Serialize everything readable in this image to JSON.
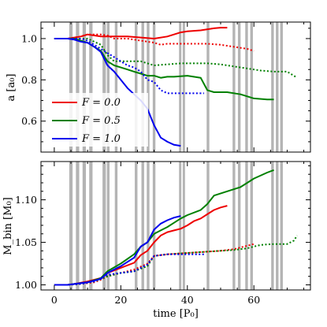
{
  "chart_data": [
    {
      "type": "line",
      "ylabel": "a [a₀]",
      "xlim": [
        -4,
        77
      ],
      "ylim": [
        0.45,
        1.08
      ],
      "yticks": [
        0.6,
        0.8,
        1.0
      ],
      "ytick_labels": [
        "0.6",
        "0.8",
        "1.0"
      ],
      "xticks": [
        0,
        20,
        40,
        60
      ],
      "grid": false,
      "legend_position": "bottom-left",
      "legend": [
        {
          "label": "F = 0.0",
          "color": "#ee0000"
        },
        {
          "label": "F = 0.5",
          "color": "#008000"
        },
        {
          "label": "F = 1.0",
          "color": "#0000ee"
        }
      ],
      "shaded_intervals": [
        [
          4.5,
          5.5
        ],
        [
          6.5,
          7.5
        ],
        [
          8.5,
          9.5
        ],
        [
          10.5,
          11.5
        ],
        [
          14.5,
          15.5
        ],
        [
          15.8,
          16.6
        ],
        [
          18.2,
          19
        ],
        [
          24.2,
          25
        ],
        [
          26.2,
          27
        ],
        [
          27.8,
          28.6
        ],
        [
          29.6,
          30.4
        ],
        [
          37.5,
          38.2
        ],
        [
          38.6,
          39.3
        ],
        [
          45.8,
          46.6
        ],
        [
          53.6,
          54.4
        ],
        [
          55.2,
          56
        ],
        [
          57.4,
          58.2
        ],
        [
          58.9,
          59.7
        ],
        [
          65.2,
          66
        ],
        [
          66.6,
          67.4
        ],
        [
          67.9,
          68.7
        ]
      ],
      "series": [
        {
          "color": "#ee0000",
          "style": "solid",
          "x": [
            0,
            4,
            8,
            10,
            14,
            18,
            22,
            26,
            30,
            34,
            36,
            38,
            40,
            44,
            48,
            50,
            52
          ],
          "y": [
            1.0,
            1.0,
            1.01,
            1.02,
            1.01,
            1.01,
            1.01,
            1.005,
            1.0,
            1.01,
            1.02,
            1.03,
            1.035,
            1.04,
            1.05,
            1.053,
            1.053
          ]
        },
        {
          "color": "#ee0000",
          "style": "dotted",
          "x": [
            0,
            4,
            8,
            10,
            14,
            16,
            18,
            22,
            26,
            30,
            32,
            34,
            38,
            42,
            46,
            50,
            54,
            58,
            60
          ],
          "y": [
            1.0,
            1.0,
            1.01,
            1.02,
            1.02,
            1.015,
            1.0,
            1.0,
            0.99,
            0.98,
            0.97,
            0.975,
            0.975,
            0.975,
            0.975,
            0.97,
            0.96,
            0.95,
            0.94
          ]
        },
        {
          "color": "#008000",
          "style": "solid",
          "x": [
            0,
            4,
            6,
            8,
            10,
            12,
            14,
            16,
            18,
            20,
            22,
            24,
            26,
            28,
            30,
            32,
            34,
            36,
            40,
            44,
            46,
            48,
            52,
            56,
            58,
            60,
            64,
            66
          ],
          "y": [
            1.0,
            1.0,
            1.0,
            0.99,
            0.98,
            0.96,
            0.94,
            0.89,
            0.87,
            0.86,
            0.85,
            0.84,
            0.83,
            0.82,
            0.82,
            0.81,
            0.815,
            0.815,
            0.82,
            0.81,
            0.75,
            0.74,
            0.74,
            0.73,
            0.72,
            0.71,
            0.705,
            0.705
          ]
        },
        {
          "color": "#008000",
          "style": "dotted",
          "x": [
            0,
            4,
            8,
            10,
            14,
            16,
            18,
            22,
            26,
            30,
            34,
            38,
            42,
            46,
            50,
            54,
            58,
            62,
            66,
            70,
            72,
            73
          ],
          "y": [
            1.0,
            1.0,
            1.0,
            1.0,
            0.97,
            0.92,
            0.89,
            0.89,
            0.89,
            0.87,
            0.875,
            0.88,
            0.88,
            0.88,
            0.875,
            0.865,
            0.855,
            0.845,
            0.84,
            0.84,
            0.82,
            0.81
          ]
        },
        {
          "color": "#0000ee",
          "style": "solid",
          "x": [
            0,
            4,
            6,
            8,
            10,
            12,
            14,
            16,
            18,
            20,
            22,
            24,
            26,
            28,
            29,
            30,
            31,
            32,
            34,
            36,
            38
          ],
          "y": [
            1.0,
            1.0,
            0.995,
            0.985,
            0.98,
            0.96,
            0.935,
            0.87,
            0.84,
            0.8,
            0.76,
            0.73,
            0.7,
            0.66,
            0.62,
            0.58,
            0.55,
            0.52,
            0.5,
            0.485,
            0.48
          ]
        },
        {
          "color": "#0000ee",
          "style": "dotted",
          "x": [
            0,
            4,
            8,
            10,
            12,
            14,
            16,
            18,
            20,
            22,
            24,
            26,
            28,
            30,
            32,
            34,
            36,
            38,
            40,
            42,
            45
          ],
          "y": [
            1.0,
            1.0,
            1.0,
            0.99,
            0.97,
            0.95,
            0.93,
            0.91,
            0.89,
            0.87,
            0.86,
            0.84,
            0.8,
            0.79,
            0.75,
            0.735,
            0.735,
            0.735,
            0.735,
            0.735,
            0.735
          ]
        }
      ]
    },
    {
      "type": "line",
      "xlabel": "time [P₀]",
      "ylabel": "M_bin [M₀]",
      "xlim": [
        -4,
        77
      ],
      "ylim": [
        0.994,
        1.145
      ],
      "yticks": [
        1.0,
        1.05,
        1.1
      ],
      "ytick_labels": [
        "1.00",
        "1.05",
        "1.10"
      ],
      "xticks": [
        0,
        20,
        40,
        60
      ],
      "xtick_labels": [
        "0",
        "20",
        "40",
        "60"
      ],
      "grid": false,
      "series": [
        {
          "color": "#ee0000",
          "style": "solid",
          "x": [
            0,
            4,
            6,
            10,
            14,
            16,
            20,
            24,
            26,
            28,
            30,
            32,
            34,
            36,
            38,
            40,
            42,
            44,
            46,
            48,
            50,
            52
          ],
          "y": [
            1.0,
            1.0,
            1.001,
            1.004,
            1.008,
            1.014,
            1.02,
            1.026,
            1.035,
            1.04,
            1.05,
            1.058,
            1.062,
            1.064,
            1.066,
            1.07,
            1.075,
            1.078,
            1.083,
            1.088,
            1.091,
            1.093
          ]
        },
        {
          "color": "#ee0000",
          "style": "dotted",
          "x": [
            0,
            4,
            8,
            12,
            14,
            16,
            20,
            24,
            28,
            30,
            34,
            38,
            42,
            46,
            50,
            54,
            58,
            60
          ],
          "y": [
            1.0,
            1.0,
            1.001,
            1.003,
            1.006,
            1.01,
            1.014,
            1.018,
            1.025,
            1.034,
            1.036,
            1.037,
            1.038,
            1.039,
            1.04,
            1.042,
            1.046,
            1.048
          ]
        },
        {
          "color": "#008000",
          "style": "solid",
          "x": [
            0,
            4,
            6,
            10,
            14,
            16,
            20,
            24,
            26,
            28,
            30,
            32,
            34,
            36,
            38,
            40,
            44,
            46,
            48,
            52,
            56,
            58,
            60,
            64,
            66
          ],
          "y": [
            1.0,
            1.0,
            1.001,
            1.003,
            1.008,
            1.016,
            1.025,
            1.036,
            1.045,
            1.05,
            1.06,
            1.064,
            1.068,
            1.073,
            1.078,
            1.082,
            1.088,
            1.095,
            1.105,
            1.11,
            1.115,
            1.12,
            1.125,
            1.132,
            1.135
          ]
        },
        {
          "color": "#008000",
          "style": "dotted",
          "x": [
            0,
            4,
            8,
            12,
            16,
            20,
            24,
            28,
            30,
            34,
            38,
            42,
            46,
            50,
            54,
            58,
            62,
            66,
            70,
            72,
            73
          ],
          "y": [
            1.0,
            1.0,
            1.001,
            1.004,
            1.01,
            1.014,
            1.016,
            1.022,
            1.034,
            1.036,
            1.037,
            1.038,
            1.039,
            1.04,
            1.041,
            1.043,
            1.047,
            1.048,
            1.048,
            1.052,
            1.058
          ]
        },
        {
          "color": "#0000ee",
          "style": "solid",
          "x": [
            0,
            4,
            6,
            10,
            14,
            16,
            20,
            24,
            26,
            28,
            30,
            32,
            34,
            36,
            38
          ],
          "y": [
            1.0,
            1.0,
            1.001,
            1.003,
            1.007,
            1.014,
            1.022,
            1.032,
            1.045,
            1.05,
            1.065,
            1.072,
            1.076,
            1.079,
            1.081
          ]
        },
        {
          "color": "#0000ee",
          "style": "dotted",
          "x": [
            0,
            4,
            8,
            12,
            14,
            16,
            20,
            24,
            28,
            30,
            34,
            38,
            42,
            45
          ],
          "y": [
            1.0,
            1.0,
            1.001,
            1.004,
            1.008,
            1.012,
            1.014,
            1.016,
            1.024,
            1.034,
            1.036,
            1.036,
            1.036,
            1.036
          ]
        }
      ]
    }
  ]
}
